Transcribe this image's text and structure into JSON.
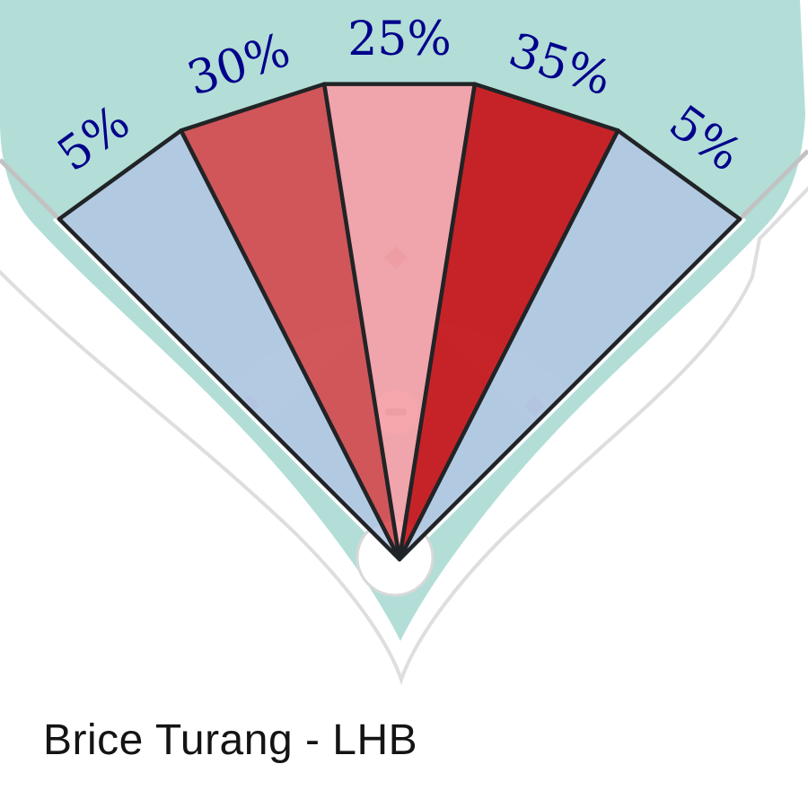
{
  "title": {
    "text": "Brice Turang - LHB"
  },
  "field": {
    "grass_color": "#b2ded7",
    "dirt_color": "#c3e4de",
    "marker_color": "#a6b3b0",
    "mound_color": "#d7ece7",
    "foul_line_gray": "#c2c2c2",
    "wall_line_gray": "#dedede",
    "home_circle_color": "#ffffff"
  },
  "chart_data": {
    "type": "pie",
    "title": "Brice Turang - LHB",
    "labels": [
      "5%",
      "30%",
      "25%",
      "35%",
      "5%"
    ],
    "values": [
      5,
      30,
      25,
      35,
      5
    ],
    "wedges": [
      {
        "label": "5%",
        "value": 5,
        "start_angle_deg": -45,
        "end_angle_deg": -27,
        "color": "rgba(178,198,228,0.87)"
      },
      {
        "label": "30%",
        "value": 30,
        "start_angle_deg": -27,
        "end_angle_deg": -9,
        "color": "rgba(213,60,66,0.84)"
      },
      {
        "label": "25%",
        "value": 25,
        "start_angle_deg": -9,
        "end_angle_deg": 9,
        "color": "rgba(252,152,162,0.84)"
      },
      {
        "label": "35%",
        "value": 35,
        "start_angle_deg": 9,
        "end_angle_deg": 27,
        "color": "rgba(200,14,22,0.9)"
      },
      {
        "label": "5%",
        "value": 5,
        "start_angle_deg": 27,
        "end_angle_deg": 45,
        "color": "rgba(178,198,228,0.87)"
      }
    ],
    "label_color": "#00008b",
    "outline_color": "#212426",
    "angle_reference": "degrees from vertical at home plate; negative = left field, positive = right field",
    "legend_position": "none",
    "grid": false
  }
}
